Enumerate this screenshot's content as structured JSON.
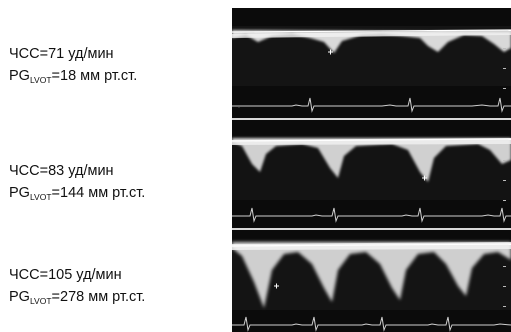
{
  "recordings": [
    {
      "hr_label": "ЧСС=71 уд/мин",
      "pg_prefix": "PG",
      "pg_sub": "LVOT",
      "pg_value": "=18 мм рт.ст."
    },
    {
      "hr_label": "ЧСС=83 уд/мин",
      "pg_prefix": "PG",
      "pg_sub": "LVOT",
      "pg_value": "=144 мм рт.ст."
    },
    {
      "hr_label": "ЧСС=105 уд/мин",
      "pg_prefix": "PG",
      "pg_sub": "LVOT",
      "pg_value": "=278 мм рт.ст."
    }
  ]
}
